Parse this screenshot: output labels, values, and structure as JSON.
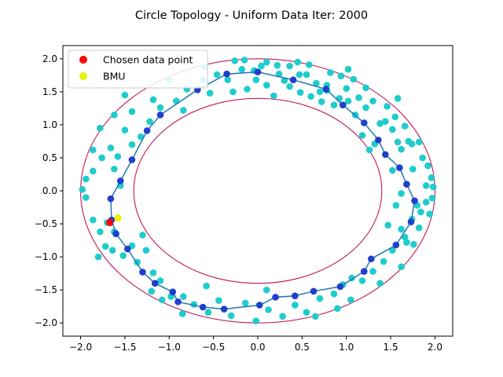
{
  "chart_data": {
    "type": "scatter",
    "title": "Circle Topology - Uniform Data Iter: 2000",
    "xlabel": "",
    "ylabel": "",
    "xlim": [
      -2.2,
      2.2
    ],
    "ylim": [
      -2.2,
      2.2
    ],
    "xticks": [
      -2.0,
      -1.5,
      -1.0,
      -0.5,
      0.0,
      0.5,
      1.0,
      1.5,
      2.0
    ],
    "yticks": [
      -2.0,
      -1.5,
      -1.0,
      -0.5,
      0.0,
      0.5,
      1.0,
      1.5,
      2.0
    ],
    "xtick_labels": [
      "−2.0",
      "−1.5",
      "−1.0",
      "−0.5",
      "0.0",
      "0.5",
      "1.0",
      "1.5",
      "2.0"
    ],
    "ytick_labels": [
      "−2.0",
      "−1.5",
      "−1.0",
      "−0.5",
      "0.0",
      "0.5",
      "1.0",
      "1.5",
      "2.0"
    ],
    "grid": false,
    "legend_position": "top-left",
    "legend": [
      {
        "label": "Chosen data point",
        "color": "#ff0000"
      },
      {
        "label": "BMU",
        "color": "#ffff00"
      }
    ],
    "colors": {
      "data": "#1fcccc",
      "ring": "#c2185b",
      "som_line": "#1f77b4",
      "som_nodes": "#1f3fcc",
      "chosen": "#ff0000",
      "bmu": "#e8f000"
    },
    "rings": [
      {
        "name": "inner boundary",
        "radius": 1.4
      },
      {
        "name": "outer boundary",
        "radius": 2.0
      }
    ],
    "chosen_point": {
      "x": -1.67,
      "y": -0.48
    },
    "bmu": {
      "x": -1.58,
      "y": -0.41
    },
    "som_nodes": [
      [
        0.0,
        1.8
      ],
      [
        0.4,
        1.68
      ],
      [
        0.77,
        1.54
      ],
      [
        0.96,
        1.3
      ],
      [
        1.2,
        1.03
      ],
      [
        1.36,
        0.77
      ],
      [
        1.44,
        0.55
      ],
      [
        1.6,
        0.35
      ],
      [
        1.68,
        0.1
      ],
      [
        1.77,
        -0.15
      ],
      [
        1.73,
        -0.47
      ],
      [
        1.56,
        -0.82
      ],
      [
        1.28,
        -1.03
      ],
      [
        1.2,
        -1.22
      ],
      [
        0.93,
        -1.45
      ],
      [
        0.63,
        -1.52
      ],
      [
        0.42,
        -1.59
      ],
      [
        0.2,
        -1.61
      ],
      [
        0.02,
        -1.73
      ],
      [
        -0.38,
        -1.79
      ],
      [
        -0.62,
        -1.76
      ],
      [
        -0.9,
        -1.68
      ],
      [
        -0.96,
        -1.53
      ],
      [
        -1.16,
        -1.4
      ],
      [
        -1.3,
        -1.23
      ],
      [
        -1.47,
        -0.88
      ],
      [
        -1.6,
        -0.65
      ],
      [
        -1.65,
        -0.44
      ],
      [
        -1.66,
        -0.12
      ],
      [
        -1.55,
        0.15
      ],
      [
        -1.42,
        0.47
      ],
      [
        -1.25,
        0.91
      ],
      [
        -1.1,
        1.15
      ],
      [
        -0.68,
        1.53
      ],
      [
        -0.35,
        1.77
      ],
      [
        0.0,
        1.8
      ]
    ],
    "data_points": [
      [
        -0.26,
        1.97
      ],
      [
        -0.04,
        1.82
      ],
      [
        0.04,
        1.89
      ],
      [
        0.1,
        1.95
      ],
      [
        0.22,
        1.9
      ],
      [
        0.36,
        1.89
      ],
      [
        0.47,
        1.76
      ],
      [
        0.55,
        1.76
      ],
      [
        0.58,
        1.91
      ],
      [
        0.66,
        1.63
      ],
      [
        0.7,
        1.5
      ],
      [
        0.78,
        1.52
      ],
      [
        0.82,
        1.79
      ],
      [
        0.92,
        1.4
      ],
      [
        0.94,
        1.74
      ],
      [
        1.0,
        1.55
      ],
      [
        1.08,
        1.69
      ],
      [
        1.14,
        1.41
      ],
      [
        1.22,
        1.26
      ],
      [
        1.3,
        1.36
      ],
      [
        1.38,
        1.02
      ],
      [
        1.46,
        1.28
      ],
      [
        1.44,
        1.05
      ],
      [
        1.52,
        0.93
      ],
      [
        1.58,
        0.74
      ],
      [
        1.62,
        0.63
      ],
      [
        1.66,
        0.98
      ],
      [
        1.7,
        0.75
      ],
      [
        1.74,
        0.71
      ],
      [
        1.82,
        0.74
      ],
      [
        1.86,
        0.5
      ],
      [
        1.92,
        0.38
      ],
      [
        1.96,
        0.2
      ],
      [
        1.98,
        0.06
      ],
      [
        1.97,
        -0.11
      ],
      [
        1.9,
        -0.17
      ],
      [
        1.84,
        -0.32
      ],
      [
        1.94,
        -0.35
      ],
      [
        1.82,
        -0.56
      ],
      [
        1.76,
        -0.81
      ],
      [
        1.68,
        -0.78
      ],
      [
        1.62,
        -0.58
      ],
      [
        1.56,
        -0.22
      ],
      [
        1.62,
        -0.04
      ],
      [
        1.52,
        0.31
      ],
      [
        1.32,
        0.71
      ],
      [
        1.26,
        0.62
      ],
      [
        1.18,
        0.84
      ],
      [
        1.1,
        1.15
      ],
      [
        1.02,
        1.36
      ],
      [
        0.86,
        1.3
      ],
      [
        0.78,
        1.6
      ],
      [
        0.6,
        1.43
      ],
      [
        0.48,
        1.49
      ],
      [
        0.36,
        1.58
      ],
      [
        0.24,
        1.77
      ],
      [
        0.18,
        1.44
      ],
      [
        0.1,
        1.6
      ],
      [
        -0.02,
        1.68
      ],
      [
        -0.12,
        1.54
      ],
      [
        -0.18,
        1.84
      ],
      [
        -0.34,
        1.68
      ],
      [
        -0.46,
        1.76
      ],
      [
        -0.54,
        1.48
      ],
      [
        -0.62,
        1.68
      ],
      [
        -0.8,
        1.54
      ],
      [
        -0.92,
        1.36
      ],
      [
        -1.1,
        1.26
      ],
      [
        -1.18,
        1.38
      ],
      [
        -1.22,
        1.05
      ],
      [
        -1.32,
        0.82
      ],
      [
        -1.42,
        0.7
      ],
      [
        -1.5,
        0.92
      ],
      [
        -1.58,
        0.52
      ],
      [
        -1.62,
        0.33
      ],
      [
        -1.76,
        0.5
      ],
      [
        -1.86,
        0.3
      ],
      [
        -1.94,
        0.18
      ],
      [
        -1.98,
        0.02
      ],
      [
        -1.94,
        -0.1
      ],
      [
        -1.86,
        -0.44
      ],
      [
        -1.78,
        -0.62
      ],
      [
        -1.72,
        -0.84
      ],
      [
        -1.62,
        -0.62
      ],
      [
        -1.52,
        -0.98
      ],
      [
        -1.42,
        -0.83
      ],
      [
        -1.36,
        -1.08
      ],
      [
        -1.26,
        -0.9
      ],
      [
        -1.18,
        -1.24
      ],
      [
        -1.1,
        -1.36
      ],
      [
        -0.98,
        -1.6
      ],
      [
        -0.84,
        -1.6
      ],
      [
        -0.72,
        -1.72
      ],
      [
        -0.56,
        -1.84
      ],
      [
        -0.44,
        -1.66
      ],
      [
        -0.3,
        -1.89
      ],
      [
        -0.14,
        -1.7
      ],
      [
        -0.02,
        -1.97
      ],
      [
        0.12,
        -1.8
      ],
      [
        0.28,
        -1.9
      ],
      [
        0.42,
        -1.73
      ],
      [
        0.55,
        -1.84
      ],
      [
        0.7,
        -1.63
      ],
      [
        0.86,
        -1.56
      ],
      [
        0.96,
        -1.42
      ],
      [
        1.06,
        -1.32
      ],
      [
        1.18,
        -1.36
      ],
      [
        1.3,
        -1.22
      ],
      [
        1.42,
        -1.07
      ],
      [
        1.52,
        -0.9
      ],
      [
        1.66,
        -0.7
      ],
      [
        1.74,
        -0.43
      ],
      [
        1.8,
        -0.22
      ],
      [
        1.9,
        0.08
      ],
      [
        -1.7,
        -0.48
      ],
      [
        -1.55,
        0.08
      ],
      [
        -1.66,
        0.65
      ],
      [
        -1.42,
        1.2
      ],
      [
        -1.0,
        1.68
      ],
      [
        -0.6,
        1.88
      ],
      [
        -0.84,
        1.22
      ],
      [
        -0.28,
        1.5
      ],
      [
        0.3,
        1.67
      ],
      [
        0.72,
        1.35
      ],
      [
        1.22,
        1.56
      ],
      [
        1.55,
        1.12
      ],
      [
        1.75,
        0.33
      ],
      [
        1.47,
        -0.52
      ],
      [
        0.9,
        -1.78
      ],
      [
        0.1,
        -1.5
      ],
      [
        -0.58,
        -1.44
      ],
      [
        -1.2,
        -1.52
      ],
      [
        -1.3,
        -0.67
      ],
      [
        -1.8,
        -1.0
      ],
      [
        -1.5,
        1.45
      ],
      [
        -0.15,
        1.98
      ],
      [
        0.45,
        1.95
      ],
      [
        1.02,
        1.84
      ],
      [
        1.58,
        1.4
      ],
      [
        -1.08,
        -1.65
      ],
      [
        -0.85,
        -1.86
      ],
      [
        0.65,
        -1.9
      ],
      [
        1.05,
        -1.65
      ],
      [
        1.38,
        -1.4
      ],
      [
        1.62,
        -1.15
      ],
      [
        -1.64,
        -0.9
      ],
      [
        -1.86,
        0.62
      ],
      [
        -1.78,
        0.95
      ],
      [
        -1.62,
        1.15
      ]
    ]
  }
}
